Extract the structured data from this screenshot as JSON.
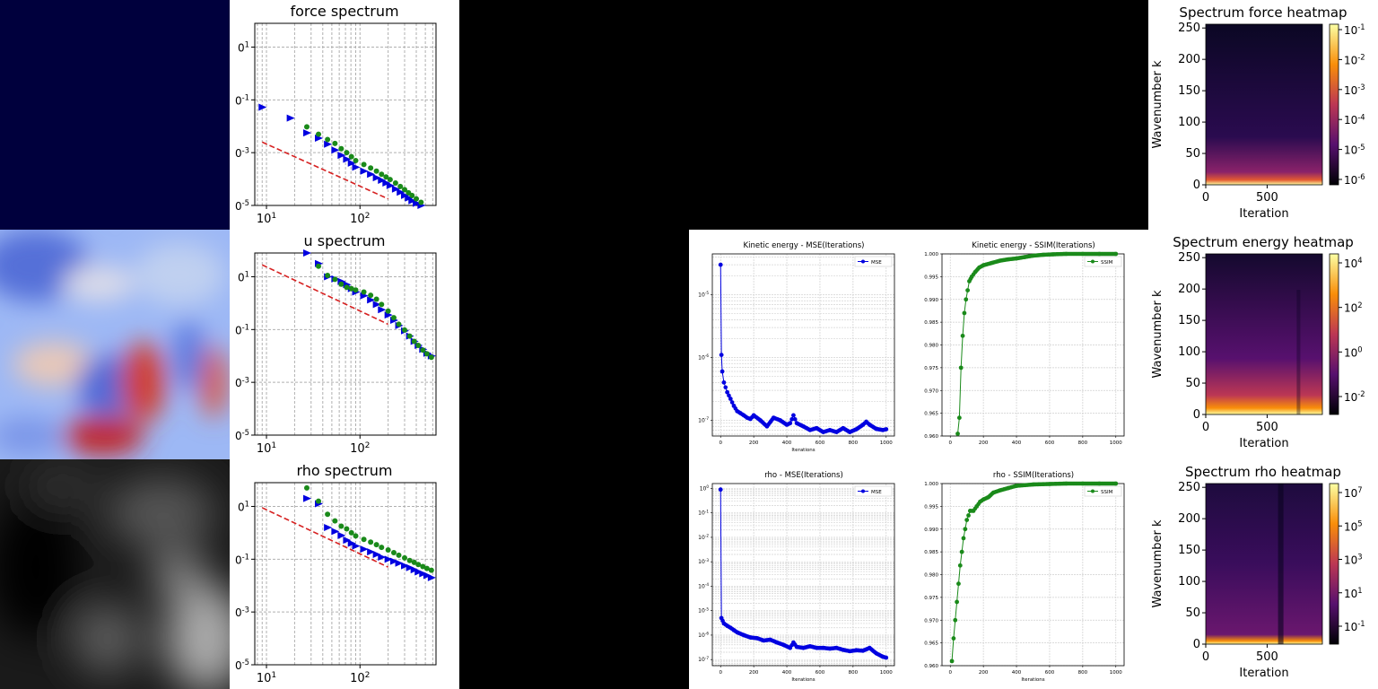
{
  "chart_data": [
    {
      "type": "scatter",
      "title": "force spectrum",
      "xscale": "log",
      "yscale": "log",
      "x_ticks": [
        "10^1",
        "10^2"
      ],
      "y_ticks": [
        "0^1",
        "0^-1",
        "0^-3",
        "0^-5"
      ],
      "grid": true,
      "series": [
        {
          "marker": "triangle-right",
          "color": "#0000e0",
          "x": [
            9,
            18,
            27,
            36,
            45,
            54,
            63,
            72,
            81,
            90,
            110,
            130,
            150,
            170,
            190,
            210,
            240,
            270,
            300,
            330,
            360,
            400,
            450
          ],
          "y": [
            -1.28,
            -1.69,
            -2.25,
            -2.45,
            -2.68,
            -2.9,
            -3.1,
            -3.25,
            -3.4,
            -3.55,
            -3.7,
            -3.82,
            -3.95,
            -4.05,
            -4.15,
            -4.25,
            -4.38,
            -4.5,
            -4.62,
            -4.72,
            -4.82,
            -4.92,
            -5.0
          ]
        },
        {
          "marker": "circle",
          "color": "#1a8a1a",
          "x": [
            27,
            36,
            45,
            54,
            63,
            72,
            81,
            90,
            110,
            130,
            150,
            170,
            190,
            210,
            240,
            270,
            300,
            330,
            360,
            400,
            450
          ],
          "y": [
            -2.02,
            -2.3,
            -2.5,
            -2.65,
            -2.85,
            -3.0,
            -3.15,
            -3.3,
            -3.45,
            -3.58,
            -3.7,
            -3.82,
            -3.92,
            -4.02,
            -4.15,
            -4.28,
            -4.4,
            -4.52,
            -4.62,
            -4.75,
            -4.88
          ]
        },
        {
          "line": "dashed",
          "color": "#d62020",
          "x": [
            9,
            200
          ],
          "y": [
            -2.6,
            -4.75
          ]
        }
      ],
      "xlim": [
        7.5,
        650
      ],
      "ylim": [
        -5.0,
        1.9
      ]
    },
    {
      "type": "scatter",
      "title": "u spectrum",
      "xscale": "log",
      "yscale": "log",
      "x_ticks": [
        "10^1",
        "10^2"
      ],
      "y_ticks": [
        "0^1",
        "0^-1",
        "0^-3",
        "0^-5"
      ],
      "grid": true,
      "series": [
        {
          "marker": "triangle-right",
          "color": "#0000e0",
          "x": [
            27,
            36,
            45,
            54,
            63,
            72,
            81,
            90,
            110,
            130,
            150,
            170,
            200,
            230,
            260,
            300,
            340,
            380,
            420,
            470,
            520,
            580
          ],
          "y": [
            1.9,
            1.5,
            1.0,
            0.92,
            0.82,
            0.7,
            0.55,
            0.42,
            0.28,
            0.12,
            -0.05,
            -0.25,
            -0.45,
            -0.65,
            -0.85,
            -1.05,
            -1.25,
            -1.45,
            -1.6,
            -1.75,
            -1.9,
            -2.0
          ]
        },
        {
          "marker": "circle",
          "color": "#1a8a1a",
          "x": [
            36,
            45,
            54,
            63,
            72,
            81,
            90,
            110,
            130,
            150,
            170,
            200,
            230,
            260,
            300,
            340,
            380,
            420,
            470,
            520,
            580
          ],
          "y": [
            1.4,
            1.05,
            0.9,
            0.72,
            0.6,
            0.55,
            0.5,
            0.42,
            0.3,
            0.15,
            -0.05,
            -0.3,
            -0.55,
            -0.8,
            -1.02,
            -1.25,
            -1.45,
            -1.6,
            -1.78,
            -1.92,
            -2.05
          ]
        },
        {
          "line": "dashed",
          "color": "#d62020",
          "x": [
            9,
            200
          ],
          "y": [
            1.45,
            -0.8
          ]
        }
      ],
      "xlim": [
        7.5,
        650
      ],
      "ylim": [
        -5.0,
        1.9
      ]
    },
    {
      "type": "scatter",
      "title": "rho spectrum",
      "xscale": "log",
      "yscale": "log",
      "x_ticks": [
        "10^1",
        "10^2"
      ],
      "y_ticks": [
        "0^1",
        "0^-1",
        "0^-3",
        "0^-5"
      ],
      "grid": true,
      "series": [
        {
          "marker": "triangle-right",
          "color": "#0000e0",
          "x": [
            27,
            36,
            45,
            54,
            63,
            72,
            81,
            90,
            110,
            130,
            150,
            170,
            200,
            230,
            260,
            300,
            340,
            380,
            420,
            470,
            520,
            580
          ],
          "y": [
            1.3,
            1.1,
            0.2,
            0.05,
            -0.1,
            -0.28,
            -0.4,
            -0.5,
            -0.62,
            -0.72,
            -0.82,
            -0.92,
            -1.0,
            -1.08,
            -1.15,
            -1.25,
            -1.32,
            -1.4,
            -1.48,
            -1.55,
            -1.62,
            -1.7
          ]
        },
        {
          "marker": "circle",
          "color": "#1a8a1a",
          "x": [
            27,
            36,
            45,
            54,
            63,
            72,
            81,
            90,
            110,
            130,
            150,
            170,
            200,
            230,
            260,
            300,
            340,
            380,
            420,
            470,
            520,
            580
          ],
          "y": [
            1.7,
            1.2,
            0.7,
            0.45,
            0.25,
            0.15,
            0.0,
            -0.12,
            -0.25,
            -0.35,
            -0.45,
            -0.55,
            -0.65,
            -0.75,
            -0.85,
            -0.95,
            -1.05,
            -1.12,
            -1.2,
            -1.28,
            -1.35,
            -1.42
          ]
        },
        {
          "line": "dashed",
          "color": "#d62020",
          "x": [
            9,
            200
          ],
          "y": [
            0.95,
            -1.3
          ]
        }
      ],
      "xlim": [
        7.5,
        650
      ],
      "ylim": [
        -5.0,
        1.9
      ]
    },
    {
      "type": "line",
      "title": "Kinetic energy - MSE(Iterations)",
      "xlabel": "Iterations",
      "yscale": "log",
      "legend": [
        "MSE"
      ],
      "legend_position": "top-right",
      "x_ticks": [
        0,
        200,
        400,
        600,
        800,
        1000
      ],
      "y_ticks": [
        "10^-5",
        "10^-6",
        "10^-7"
      ],
      "series": [
        {
          "name": "MSE",
          "color": "#0000e0",
          "x": [
            0,
            5,
            10,
            20,
            40,
            60,
            80,
            100,
            120,
            140,
            160,
            180,
            200,
            240,
            280,
            320,
            360,
            400,
            420,
            440,
            460,
            500,
            540,
            580,
            620,
            660,
            700,
            740,
            780,
            820,
            860,
            880,
            900,
            940,
            980,
            1000
          ],
          "y": [
            3e-05,
            1.1e-06,
            6e-07,
            4e-07,
            2.8e-07,
            2.2e-07,
            1.7e-07,
            1.4e-07,
            1.3e-07,
            1.2e-07,
            1.1e-07,
            1.05e-07,
            1.2e-07,
            1e-07,
            8e-08,
            1.1e-07,
            1e-07,
            8.5e-08,
            9e-08,
            1.2e-07,
            9e-08,
            8e-08,
            7e-08,
            7.5e-08,
            6.5e-08,
            7e-08,
            6.5e-08,
            7.5e-08,
            6.5e-08,
            7.2e-08,
            8.5e-08,
            9.5e-08,
            8.5e-08,
            7.3e-08,
            7e-08,
            7.2e-08
          ]
        }
      ],
      "xlim": [
        -50,
        1050
      ],
      "ylim_log10": [
        -7.25,
        -4.35
      ]
    },
    {
      "type": "line",
      "title": "Kinetic energy - SSIM(Iterations)",
      "legend": [
        "SSIM"
      ],
      "legend_position": "top-right",
      "x_ticks": [
        0,
        200,
        400,
        600,
        800,
        1000
      ],
      "y_ticks": [
        1.0,
        0.995,
        0.99,
        0.985,
        0.98,
        0.975,
        0.97,
        0.965,
        0.96
      ],
      "series": [
        {
          "name": "SSIM",
          "color": "#1a8a1a",
          "x": [
            45,
            55,
            65,
            75,
            85,
            95,
            105,
            115,
            130,
            150,
            175,
            200,
            250,
            300,
            350,
            400,
            450,
            500,
            560,
            620,
            700,
            800,
            900,
            1000
          ],
          "y": [
            0.9605,
            0.964,
            0.975,
            0.982,
            0.987,
            0.99,
            0.992,
            0.994,
            0.995,
            0.996,
            0.997,
            0.9975,
            0.998,
            0.9985,
            0.9988,
            0.999,
            0.9993,
            0.9996,
            0.9998,
            0.9999,
            1.0,
            1.0,
            1.0,
            1.0
          ]
        }
      ],
      "xlim": [
        -50,
        1050
      ],
      "ylim": [
        0.96,
        1.0
      ]
    },
    {
      "type": "line",
      "title": "rho - MSE(Iterations)",
      "xlabel": "Iterations",
      "yscale": "log",
      "legend": [
        "MSE"
      ],
      "legend_position": "top-right",
      "x_ticks": [
        0,
        200,
        400,
        600,
        800,
        1000
      ],
      "y_ticks": [
        "10^0",
        "10^-1",
        "10^-2",
        "10^-3",
        "10^-4",
        "10^-5",
        "10^-6",
        "10^-7"
      ],
      "series": [
        {
          "name": "MSE",
          "color": "#0000e0",
          "x": [
            0,
            5,
            20,
            40,
            60,
            80,
            100,
            140,
            180,
            220,
            260,
            300,
            340,
            380,
            420,
            440,
            460,
            500,
            540,
            580,
            620,
            660,
            700,
            740,
            780,
            820,
            860,
            900,
            940,
            980,
            1000
          ],
          "y": [
            0.9,
            5e-06,
            3e-06,
            2.4e-06,
            2e-06,
            1.6e-06,
            1.3e-06,
            1e-06,
            8e-07,
            7.5e-07,
            6e-07,
            6.5e-07,
            5e-07,
            4e-07,
            3e-07,
            5e-07,
            3.3e-07,
            3e-07,
            3.5e-07,
            3e-07,
            3e-07,
            2.8e-07,
            3e-07,
            2.5e-07,
            2.2e-07,
            2.4e-07,
            2.3e-07,
            3e-07,
            1.8e-07,
            1.3e-07,
            1.2e-07
          ]
        }
      ],
      "xlim": [
        -50,
        1050
      ],
      "ylim_log10": [
        -7.25,
        0.2
      ]
    },
    {
      "type": "line",
      "title": "rho - SSIM(Iterations)",
      "xlabel": "Iterations",
      "legend": [
        "SSIM"
      ],
      "legend_position": "top-right",
      "x_ticks": [
        0,
        200,
        400,
        600,
        800,
        1000
      ],
      "y_ticks": [
        1.0,
        0.995,
        0.99,
        0.985,
        0.98,
        0.975,
        0.97,
        0.965,
        0.96
      ],
      "series": [
        {
          "name": "SSIM",
          "color": "#1a8a1a",
          "x": [
            10,
            20,
            30,
            40,
            50,
            60,
            70,
            80,
            90,
            100,
            110,
            120,
            140,
            160,
            180,
            200,
            230,
            260,
            300,
            350,
            400,
            500,
            600,
            700,
            800,
            900,
            1000
          ],
          "y": [
            0.961,
            0.966,
            0.97,
            0.974,
            0.978,
            0.982,
            0.985,
            0.988,
            0.99,
            0.992,
            0.993,
            0.994,
            0.994,
            0.995,
            0.996,
            0.9965,
            0.997,
            0.998,
            0.9985,
            0.999,
            0.9995,
            0.9998,
            0.9999,
            1.0,
            1.0,
            1.0,
            1.0
          ]
        }
      ],
      "xlim": [
        -50,
        1050
      ],
      "ylim": [
        0.96,
        1.0
      ]
    },
    {
      "type": "heatmap",
      "title": "Spectrum force heatmap",
      "xlabel": "Iteration",
      "ylabel": "Wavenumber k",
      "x_ticks": [
        0,
        500
      ],
      "y_ticks": [
        0,
        50,
        100,
        150,
        200,
        250
      ],
      "xlim": [
        0,
        950
      ],
      "ylim": [
        0,
        256
      ],
      "colorbar_ticks": [
        "10^-1",
        "10^-2",
        "10^-3",
        "10^-4",
        "10^-5",
        "10^-6"
      ],
      "colormap": "inferno"
    },
    {
      "type": "heatmap",
      "title": "Spectrum energy heatmap",
      "xlabel": "Iteration",
      "ylabel": "Wavenumber k",
      "x_ticks": [
        0,
        500
      ],
      "y_ticks": [
        0,
        50,
        100,
        150,
        200,
        250
      ],
      "xlim": [
        0,
        950
      ],
      "ylim": [
        0,
        256
      ],
      "colorbar_ticks": [
        "10^4",
        "10^2",
        "10^0",
        "10^-2"
      ],
      "colormap": "inferno"
    },
    {
      "type": "heatmap",
      "title": "Spectrum rho heatmap",
      "xlabel": "Iteration",
      "ylabel": "Wavenumber k",
      "x_ticks": [
        0,
        500
      ],
      "y_ticks": [
        0,
        50,
        100,
        150,
        200,
        250
      ],
      "xlim": [
        0,
        950
      ],
      "ylim": [
        0,
        256
      ],
      "colorbar_ticks": [
        "10^7",
        "10^5",
        "10^3",
        "10^1",
        "10^-1"
      ],
      "colormap": "inferno"
    }
  ]
}
